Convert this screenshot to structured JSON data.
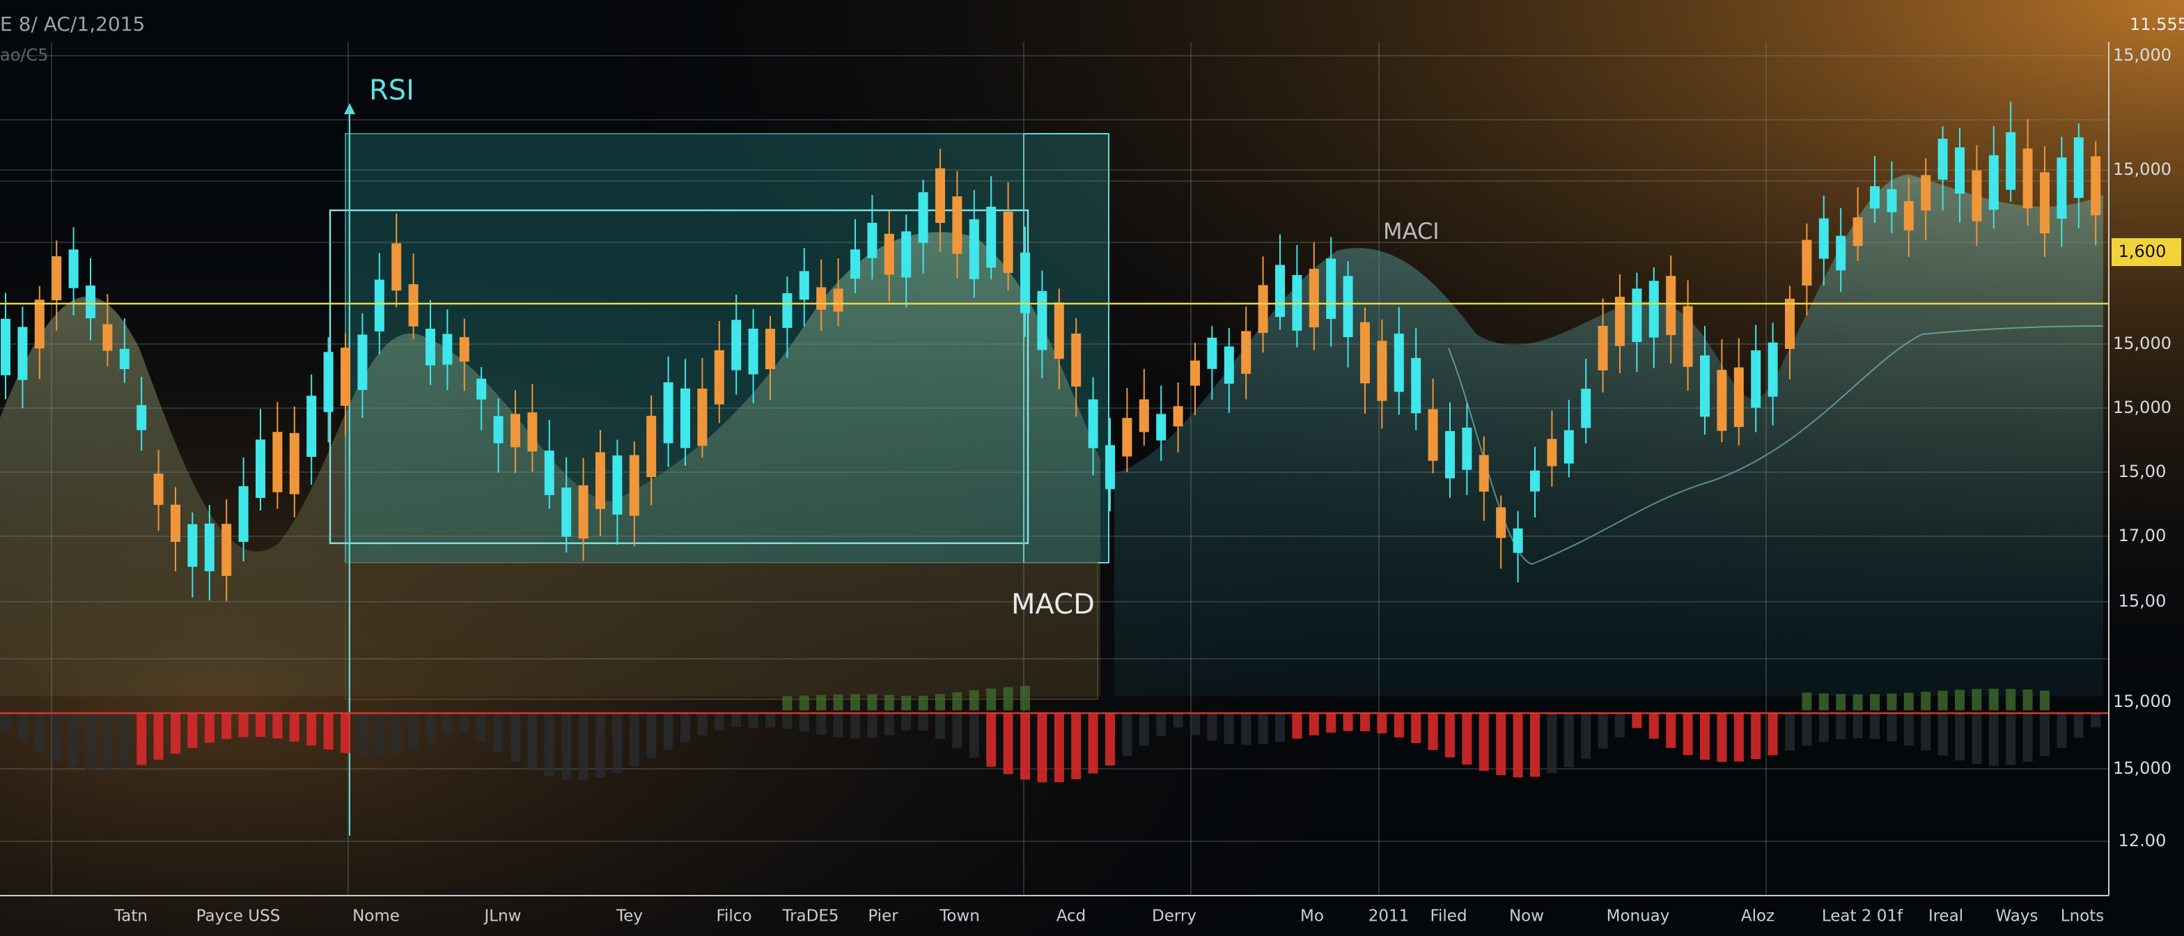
{
  "header": {
    "title": "E 8/ AC/1,2015",
    "subtitle": "ao/C5",
    "corner_value": "11.555"
  },
  "y_axis_labels": [
    "15,000",
    "15,000",
    "1,600",
    "15,000",
    "15,000",
    "15,00",
    "17,00",
    "15,00",
    "15,000",
    "15,000",
    "12.00"
  ],
  "x_axis_labels": [
    "Tatn",
    "Payce USS",
    "Nome",
    "JLnw",
    "Tey",
    "Filco",
    "TraDE5",
    "Pier",
    "Town",
    "Acd",
    "Derry",
    "Mo",
    "2011",
    "Filed",
    "Now",
    "Monuay",
    "Aloz",
    "Leat 2 01f",
    "Ireal",
    "Ways",
    "Lnots"
  ],
  "annotations": {
    "rsi": "RSI",
    "maci": "MACI",
    "macd": "MACD"
  }
}
